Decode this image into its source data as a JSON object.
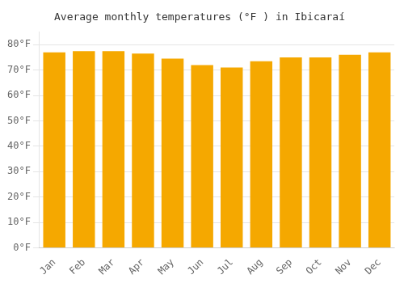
{
  "chart_data": {
    "type": "bar",
    "title": "Average monthly temperatures (°F ) in Ibicaraí",
    "categories": [
      "Jan",
      "Feb",
      "Mar",
      "Apr",
      "May",
      "Jun",
      "Jul",
      "Aug",
      "Sep",
      "Oct",
      "Nov",
      "Dec"
    ],
    "values": [
      77.0,
      77.5,
      77.5,
      76.5,
      74.5,
      72.0,
      71.0,
      73.5,
      75.0,
      75.0,
      76.0,
      77.0
    ],
    "color": "#F5A800",
    "ylim": [
      0,
      85
    ],
    "yticks": [
      {
        "value": 0,
        "label": "0°F"
      },
      {
        "value": 10,
        "label": "10°F"
      },
      {
        "value": 20,
        "label": "20°F"
      },
      {
        "value": 30,
        "label": "30°F"
      },
      {
        "value": 40,
        "label": "40°F"
      },
      {
        "value": 50,
        "label": "50°F"
      },
      {
        "value": 60,
        "label": "60°F"
      },
      {
        "value": 70,
        "label": "70°F"
      },
      {
        "value": 80,
        "label": "80°F"
      }
    ],
    "grid": true
  }
}
